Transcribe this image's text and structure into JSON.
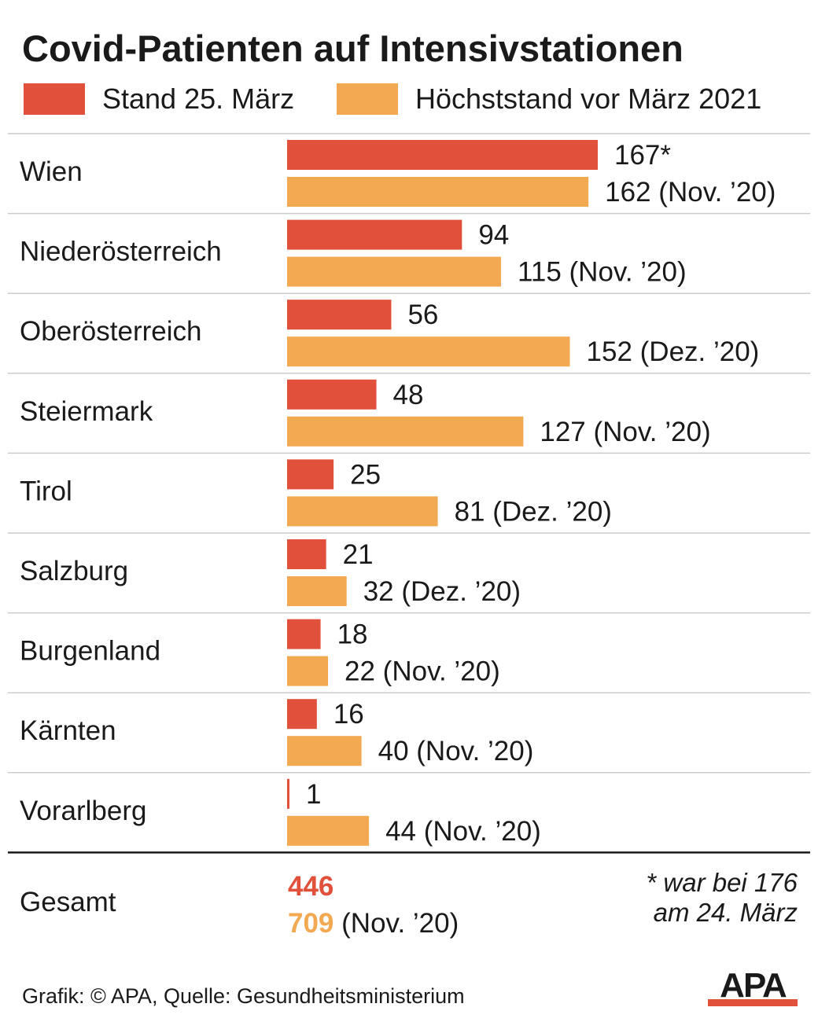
{
  "title": "Covid-Patienten auf Intensivstationen",
  "legend": [
    {
      "label": "Stand 25. März",
      "color": "#e0503a"
    },
    {
      "label": "Höchststand vor März 2021",
      "color": "#f3a852"
    }
  ],
  "chart_data": {
    "type": "bar",
    "orientation": "horizontal",
    "title": "Covid-Patienten auf Intensivstationen",
    "categories": [
      "Wien",
      "Niederösterreich",
      "Oberösterreich",
      "Steiermark",
      "Tirol",
      "Salzburg",
      "Burgenland",
      "Kärnten",
      "Vorarlberg"
    ],
    "series": [
      {
        "name": "Stand 25. März",
        "color": "#e0503a",
        "values": [
          167,
          94,
          56,
          48,
          25,
          21,
          18,
          16,
          1
        ],
        "labels": [
          "167*",
          "94",
          "56",
          "48",
          "25",
          "21",
          "18",
          "16",
          "1"
        ]
      },
      {
        "name": "Höchststand vor März 2021",
        "color": "#f3a852",
        "values": [
          162,
          115,
          152,
          127,
          81,
          32,
          22,
          40,
          44
        ],
        "labels": [
          "162 (Nov. ’20)",
          "115 (Nov. ’20)",
          "152 (Dez. ’20)",
          "127 (Nov. ’20)",
          "81 (Dez. ’20)",
          "32 (Dez. ’20)",
          "22 (Nov. ’20)",
          "40 (Nov. ’20)",
          "44 (Nov. ’20)"
        ]
      }
    ],
    "xlim": [
      0,
      167
    ],
    "grid": false,
    "legend_position": "top"
  },
  "total": {
    "label": "Gesamt",
    "current": "446",
    "peak": "709",
    "peak_note": "(Nov. ’20)"
  },
  "footnote": [
    "* war bei 176",
    "am 24. März"
  ],
  "source": "Grafik: © APA, Quelle: Gesundheitsministerium",
  "logo_text": "APA"
}
